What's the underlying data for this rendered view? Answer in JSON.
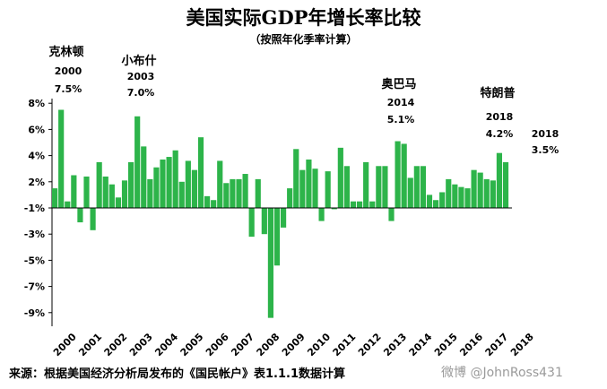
{
  "chart_data": {
    "type": "bar",
    "title": "美国实际GDP年增长率比较",
    "subtitle": "（按照年化季率计算）",
    "source": "来源：根据美国经济分析局发布的《国民帐户》表1.1.1数据计算",
    "watermark": "微博 @JohnRoss431",
    "bar_color": "#2db44a",
    "y_ticks": [
      "8%",
      "6%",
      "4%",
      "2%",
      "-1%",
      "-3%",
      "-5%",
      "-7%",
      "-9%"
    ],
    "x_tick_labels": [
      "2000",
      "2001",
      "2002",
      "2003",
      "2004",
      "2005",
      "2006",
      "2007",
      "2008",
      "2009",
      "2010",
      "2011",
      "2012",
      "2013",
      "2014",
      "2015",
      "2016",
      "2017",
      "2018"
    ],
    "values": [
      1.5,
      7.5,
      0.5,
      2.5,
      -1.1,
      2.4,
      -1.7,
      3.5,
      2.4,
      1.8,
      0.8,
      2.1,
      3.5,
      7.0,
      4.7,
      2.2,
      3.1,
      3.7,
      3.9,
      4.4,
      2.0,
      3.6,
      2.9,
      5.4,
      0.9,
      0.6,
      3.6,
      1.9,
      2.2,
      2.2,
      2.6,
      -2.2,
      2.2,
      -2.0,
      -8.4,
      -4.4,
      -1.5,
      1.5,
      4.5,
      2.9,
      3.7,
      3.0,
      -1.0,
      2.8,
      -0.1,
      4.6,
      3.2,
      0.5,
      0.5,
      3.5,
      0.5,
      3.2,
      3.2,
      -1.0,
      5.1,
      4.9,
      2.3,
      3.2,
      3.2,
      1.0,
      0.6,
      1.2,
      2.2,
      1.8,
      1.6,
      1.5,
      2.9,
      2.7,
      2.2,
      2.1,
      4.2,
      3.5
    ],
    "annotations": [
      {
        "name": "克林顿",
        "year": "2000",
        "value": "7.5%"
      },
      {
        "name": "小布什",
        "year": "2003",
        "value": "7.0%"
      },
      {
        "name": "奥巴马",
        "year": "2014",
        "value": "5.1%"
      },
      {
        "name": "特朗普",
        "year": "2018",
        "value": "4.2%"
      },
      {
        "name": "",
        "year": "2018",
        "value": "3.5%"
      }
    ],
    "grid": false,
    "legend": "none"
  }
}
